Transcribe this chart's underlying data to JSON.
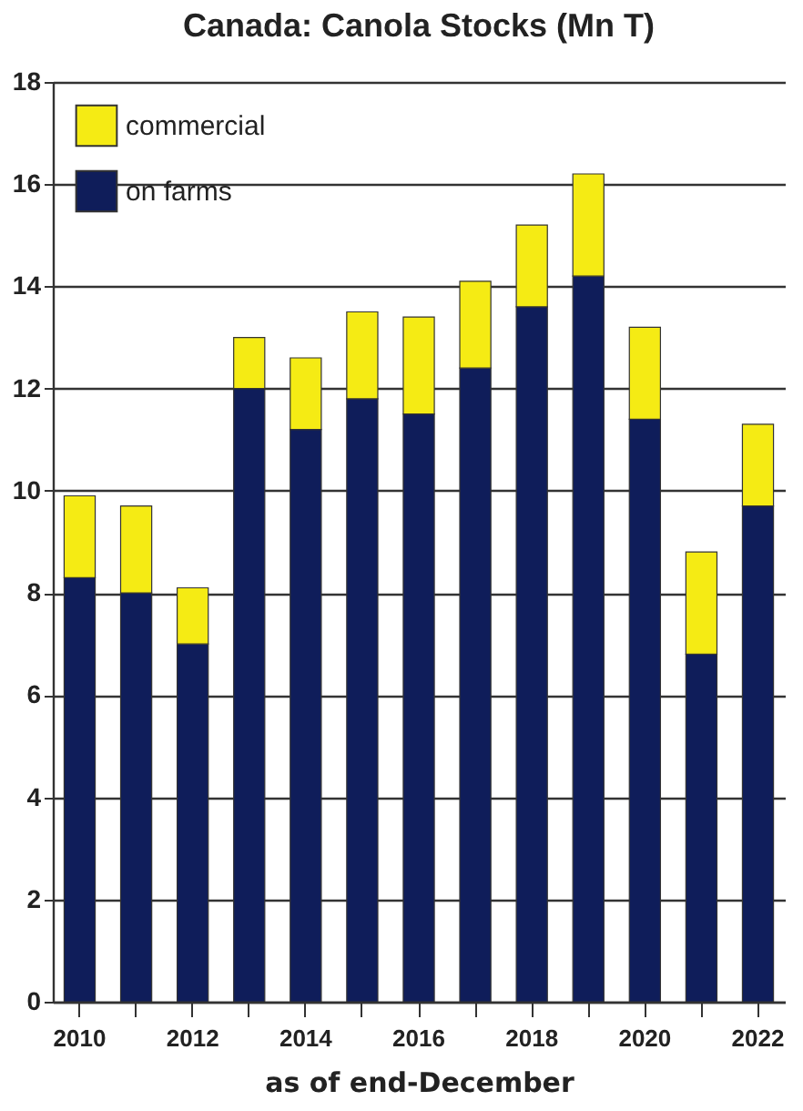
{
  "chart_data": {
    "type": "bar",
    "title": "Canada: Canola Stocks (Mn T)",
    "xlabel": "as of end-December",
    "categories": [
      "2010",
      null,
      "2012",
      null,
      "2014",
      null,
      "2016",
      null,
      "2018",
      null,
      "2020",
      null,
      "2022"
    ],
    "series": [
      {
        "name": "on farms",
        "color": "#0f1d5a",
        "values": [
          8.3,
          8.0,
          7.0,
          12.0,
          11.2,
          11.8,
          11.5,
          12.4,
          13.6,
          14.2,
          11.4,
          6.8,
          9.7
        ]
      },
      {
        "name": "commercial",
        "color": "#f5eb14",
        "values": [
          1.6,
          1.7,
          1.1,
          1.0,
          1.4,
          1.7,
          1.9,
          1.7,
          1.6,
          2.0,
          1.8,
          2.0,
          1.6
        ]
      }
    ],
    "stacked": true,
    "ylim": [
      0,
      18
    ],
    "yticks": [
      0,
      2,
      4,
      6,
      8,
      10,
      12,
      14,
      16,
      18
    ],
    "grid": "y",
    "legend": "top left"
  }
}
